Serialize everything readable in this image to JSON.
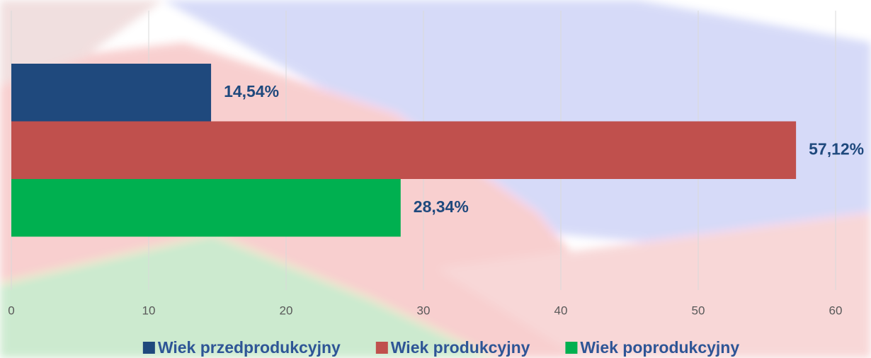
{
  "chart_data": {
    "type": "bar",
    "orientation": "horizontal",
    "categories": [
      null
    ],
    "series": [
      {
        "name": "Wiek przedprodukcyjny",
        "color": "#1f497d",
        "values": [
          14.54
        ],
        "value_labels": [
          "14,54%"
        ]
      },
      {
        "name": "Wiek produkcyjny",
        "color": "#c0504d",
        "values": [
          57.12
        ],
        "value_labels": [
          "57,12%"
        ]
      },
      {
        "name": "Wiek poprodukcyjny",
        "color": "#00b050",
        "values": [
          28.34
        ],
        "value_labels": [
          "28,34%"
        ]
      }
    ],
    "xlim": [
      0,
      60
    ],
    "xticks": [
      0,
      10,
      20,
      30,
      40,
      50,
      60
    ],
    "grid": true,
    "legend": "bottom"
  }
}
